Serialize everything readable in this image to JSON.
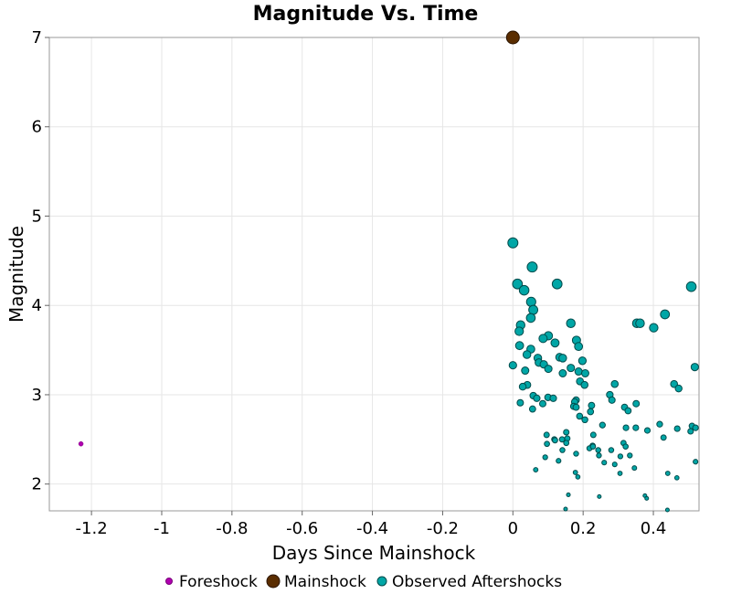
{
  "chart_data": {
    "type": "scatter",
    "title": "Magnitude Vs. Time",
    "xlabel": "Days Since Mainshock",
    "ylabel": "Magnitude",
    "xlim": [
      -1.32,
      0.53
    ],
    "ylim": [
      1.7,
      7.0
    ],
    "x_ticks": [
      -1.2,
      -1,
      -0.8,
      -0.6,
      -0.4,
      -0.2,
      0,
      0.2,
      0.4
    ],
    "x_tick_labels": [
      "-1.2",
      "-1",
      "-0.8",
      "-0.6",
      "-0.4",
      "-0.2",
      "0",
      "0.2",
      "0.4"
    ],
    "y_ticks": [
      2,
      3,
      4,
      5,
      6,
      7
    ],
    "y_tick_labels": [
      "2",
      "3",
      "4",
      "5",
      "6",
      "7"
    ],
    "grid": true,
    "legend_position": "bottom",
    "series": [
      {
        "name": "Foreshock",
        "color": "#b000b0",
        "stroke": "#7a007a",
        "points": [
          [
            -1.23,
            2.45
          ]
        ]
      },
      {
        "name": "Mainshock",
        "color": "#5a2d00",
        "stroke": "#2a1400",
        "points": [
          [
            0.0,
            7.0
          ]
        ]
      },
      {
        "name": "Observed Aftershocks",
        "color": "#00a6a6",
        "stroke": "#004a4a",
        "points": [
          [
            0.0,
            4.7
          ],
          [
            0.013,
            4.24
          ],
          [
            0.032,
            4.17
          ],
          [
            0.055,
            4.43
          ],
          [
            0.126,
            4.24
          ],
          [
            0.508,
            4.21
          ],
          [
            0.052,
            4.04
          ],
          [
            0.058,
            3.95
          ],
          [
            0.051,
            3.86
          ],
          [
            0.433,
            3.9
          ],
          [
            0.165,
            3.8
          ],
          [
            0.353,
            3.8
          ],
          [
            0.362,
            3.8
          ],
          [
            0.401,
            3.75
          ],
          [
            0.022,
            3.78
          ],
          [
            0.018,
            3.71
          ],
          [
            0.101,
            3.66
          ],
          [
            0.086,
            3.63
          ],
          [
            0.12,
            3.58
          ],
          [
            0.181,
            3.61
          ],
          [
            0.187,
            3.54
          ],
          [
            0.019,
            3.55
          ],
          [
            0.051,
            3.51
          ],
          [
            0.04,
            3.45
          ],
          [
            0.071,
            3.41
          ],
          [
            0.133,
            3.42
          ],
          [
            0.142,
            3.41
          ],
          [
            0.074,
            3.36
          ],
          [
            0.198,
            3.38
          ],
          [
            0.088,
            3.34
          ],
          [
            0.0,
            3.33
          ],
          [
            0.101,
            3.29
          ],
          [
            0.165,
            3.3
          ],
          [
            0.187,
            3.26
          ],
          [
            0.142,
            3.24
          ],
          [
            0.206,
            3.24
          ],
          [
            0.518,
            3.31
          ],
          [
            0.035,
            3.27
          ],
          [
            0.041,
            3.11
          ],
          [
            0.191,
            3.15
          ],
          [
            0.204,
            3.11
          ],
          [
            0.29,
            3.12
          ],
          [
            0.459,
            3.12
          ],
          [
            0.472,
            3.07
          ],
          [
            0.028,
            3.09
          ],
          [
            0.276,
            3.0
          ],
          [
            0.058,
            2.99
          ],
          [
            0.068,
            2.96
          ],
          [
            0.1,
            2.97
          ],
          [
            0.115,
            2.96
          ],
          [
            0.18,
            2.94
          ],
          [
            0.176,
            2.92
          ],
          [
            0.021,
            2.91
          ],
          [
            0.085,
            2.9
          ],
          [
            0.351,
            2.9
          ],
          [
            0.173,
            2.87
          ],
          [
            0.18,
            2.86
          ],
          [
            0.224,
            2.88
          ],
          [
            0.282,
            2.94
          ],
          [
            0.318,
            2.86
          ],
          [
            0.056,
            2.84
          ],
          [
            0.221,
            2.81
          ],
          [
            0.328,
            2.82
          ],
          [
            0.19,
            2.76
          ],
          [
            0.205,
            2.72
          ],
          [
            0.255,
            2.66
          ],
          [
            0.322,
            2.63
          ],
          [
            0.35,
            2.63
          ],
          [
            0.383,
            2.6
          ],
          [
            0.418,
            2.67
          ],
          [
            0.468,
            2.62
          ],
          [
            0.51,
            2.65
          ],
          [
            0.52,
            2.63
          ],
          [
            0.506,
            2.59
          ],
          [
            0.152,
            2.58
          ],
          [
            0.096,
            2.55
          ],
          [
            0.14,
            2.5
          ],
          [
            0.155,
            2.51
          ],
          [
            0.118,
            2.5
          ],
          [
            0.229,
            2.55
          ],
          [
            0.152,
            2.46
          ],
          [
            0.315,
            2.46
          ],
          [
            0.097,
            2.45
          ],
          [
            0.12,
            2.49
          ],
          [
            0.227,
            2.43
          ],
          [
            0.429,
            2.52
          ],
          [
            0.218,
            2.4
          ],
          [
            0.228,
            2.42
          ],
          [
            0.321,
            2.42
          ],
          [
            0.141,
            2.38
          ],
          [
            0.243,
            2.38
          ],
          [
            0.28,
            2.38
          ],
          [
            0.18,
            2.34
          ],
          [
            0.306,
            2.31
          ],
          [
            0.333,
            2.32
          ],
          [
            0.092,
            2.3
          ],
          [
            0.245,
            2.32
          ],
          [
            0.26,
            2.24
          ],
          [
            0.52,
            2.25
          ],
          [
            0.13,
            2.26
          ],
          [
            0.065,
            2.16
          ],
          [
            0.29,
            2.22
          ],
          [
            0.346,
            2.18
          ],
          [
            0.305,
            2.12
          ],
          [
            0.178,
            2.13
          ],
          [
            0.185,
            2.08
          ],
          [
            0.441,
            2.12
          ],
          [
            0.467,
            2.07
          ],
          [
            0.158,
            1.88
          ],
          [
            0.246,
            1.86
          ],
          [
            0.376,
            1.87
          ],
          [
            0.381,
            1.84
          ],
          [
            0.15,
            1.72
          ],
          [
            0.44,
            1.71
          ]
        ]
      }
    ]
  }
}
